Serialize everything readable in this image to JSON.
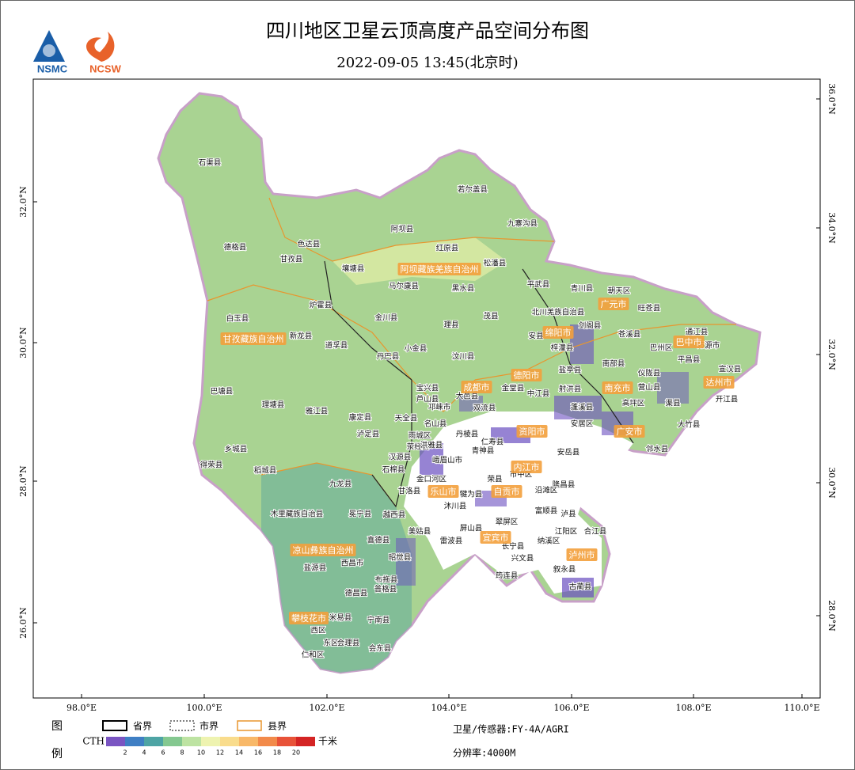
{
  "header": {
    "title": "四川地区卫星云顶高度产品空间分布图",
    "subtitle": "2022-09-05 13:45(北京时)",
    "logos": [
      "NSMC",
      "NCSW"
    ]
  },
  "map": {
    "lon_labels": [
      "98.0°E",
      "100.0°E",
      "102.0°E",
      "104.0°E",
      "106.0°E",
      "108.0°E",
      "110.0°E"
    ],
    "lat_left": [
      "32.0°N",
      "30.0°N",
      "28.0°N",
      "26.0°N"
    ],
    "lat_right": [
      "36.0°N",
      "34.0°N",
      "32.0°N",
      "30.0°N",
      "28.0°N"
    ],
    "cities": [
      "阿坝藏族羌族自治州",
      "甘孜藏族自治州",
      "凉山彝族自治州",
      "攀枝花市",
      "乐山市",
      "宜宾市",
      "泸州市",
      "自贡市",
      "内江市",
      "资阳市",
      "成都市",
      "德阳市",
      "绵阳市",
      "广元市",
      "巴中市",
      "南充市",
      "广安市",
      "达州市"
    ],
    "counties": [
      "石渠县",
      "德格县",
      "色达县",
      "甘孜县",
      "白玉县",
      "炉霍县",
      "新龙县",
      "道孚县",
      "巴塘县",
      "理塘县",
      "雅江县",
      "康定县",
      "乡城县",
      "得荣县",
      "稻城县",
      "九龙县",
      "木里藏族自治县",
      "冕宁县",
      "西昌市",
      "盐源县",
      "德昌县",
      "米易县",
      "西区",
      "东区",
      "仁和区",
      "会理县",
      "会东县",
      "宁南县",
      "若尔盖县",
      "九寨沟县",
      "阿坝县",
      "红原县",
      "壤塘县",
      "松潘县",
      "马尔康县",
      "黑水县",
      "平武县",
      "青川县",
      "朝天区",
      "旺苍县",
      "金川县",
      "茂县",
      "北川羌族自治县",
      "理县",
      "小金县",
      "汶川县",
      "丹巴县",
      "安县",
      "剑阁县",
      "苍溪县",
      "通江县",
      "万源市",
      "梓潼县",
      "巴州区",
      "平昌县",
      "宣汉县",
      "盐亭县",
      "南部县",
      "仪陇县",
      "宝兴县",
      "芦山县",
      "大邑县",
      "金堂县",
      "中江县",
      "射洪县",
      "营山县",
      "渠县",
      "开江县",
      "天全县",
      "名山县",
      "邛崃市",
      "双流县",
      "蓬溪县",
      "高坪区",
      "大竹县",
      "泸定县",
      "雨城区",
      "丹棱县",
      "仁寿县",
      "安居区",
      "邻水县",
      "荥经县",
      "洪雅县",
      "青神县",
      "安岳县",
      "汉源县",
      "峨眉山市",
      "市中区",
      "石棉县",
      "金口河区",
      "隆昌县",
      "荣县",
      "沿滩区",
      "甘洛县",
      "犍为县",
      "越西县",
      "沐川县",
      "富顺县",
      "泸县",
      "屏山县",
      "翠屏区",
      "美姑县",
      "江阳区",
      "合江县",
      "雷波县",
      "纳溪区",
      "喜德县",
      "昭觉县",
      "长宁县",
      "兴文县",
      "叙永县",
      "布拖县",
      "普格县",
      "筠连县",
      "古蔺县"
    ]
  },
  "legend": {
    "title_top": "图",
    "title_bottom": "例",
    "boundaries": [
      "省界",
      "市界",
      "县界"
    ],
    "colorbar_label": "CTH",
    "colors": [
      "#7a55c2",
      "#3f7fc4",
      "#4ea4a4",
      "#84c890",
      "#bde3a2",
      "#eef3b0",
      "#f9dc8c",
      "#f8b868",
      "#f28a4a",
      "#e85238",
      "#d42424"
    ],
    "ticks": [
      2,
      4,
      6,
      8,
      10,
      12,
      14,
      16,
      18,
      20
    ],
    "unit": "千米"
  },
  "info": {
    "satellite": "卫星/传感器:FY-4A/AGRI",
    "resolution": "分辨率:4000M"
  }
}
